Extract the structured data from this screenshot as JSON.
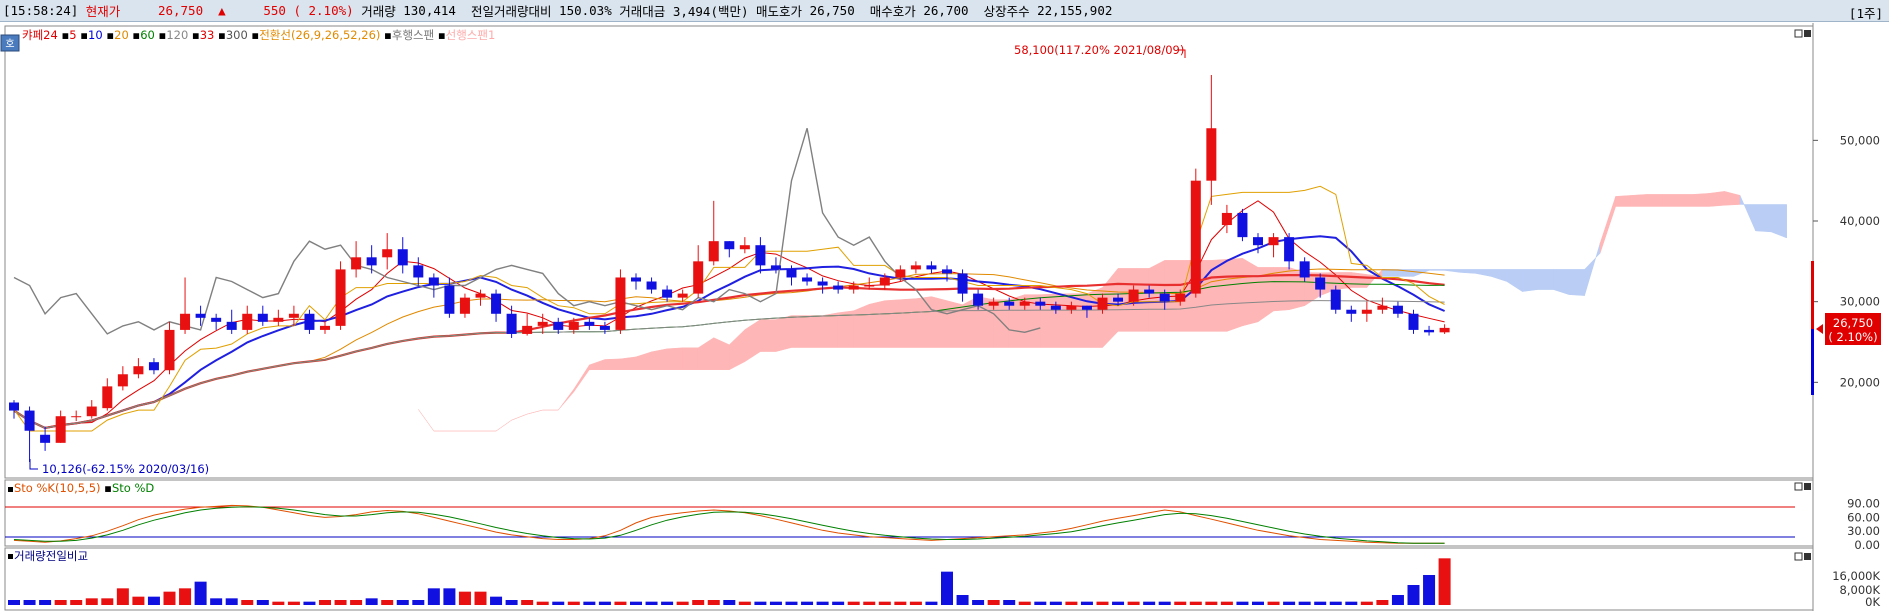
{
  "header": {
    "time": "[15:58:24]",
    "label_current": "현재가",
    "price": "26,750",
    "arrow": "▲",
    "change": "550",
    "change_pct": "( 2.10%)",
    "vol_label": "거래량",
    "vol": "130,414",
    "prevvol_label": "전일거래량대비",
    "prevvol": "150.03%",
    "amt_label": "거래대금",
    "amt": "3,494(백만)",
    "ask_label": "매도호가",
    "ask": "26,750",
    "bid_label": "매수호가",
    "bid": "26,700",
    "shares_label": "상장주수",
    "shares": "22,155,902",
    "period": "[1주]"
  },
  "legend": {
    "badge": "호",
    "main": [
      {
        "text": "캬페24",
        "color": "#e00000"
      },
      {
        "text": "5",
        "color": "#e00000"
      },
      {
        "text": "10",
        "color": "#0000e0"
      },
      {
        "text": "20",
        "color": "#e08a00"
      },
      {
        "text": "60",
        "color": "#008000"
      },
      {
        "text": "120",
        "color": "#888888"
      },
      {
        "text": "33",
        "color": "#e00000"
      },
      {
        "text": "300",
        "color": "#555555"
      },
      {
        "text": "전환선(26,9,26,52,26)",
        "color": "#e08a00"
      },
      {
        "text": "후행스팬",
        "color": "#777777"
      },
      {
        "text": "선행스팬1",
        "color": "#ffaaaa"
      }
    ],
    "sto": [
      {
        "text": "Sto %K(10,5,5)",
        "color": "#e05000"
      },
      {
        "text": "Sto %D",
        "color": "#008000"
      }
    ],
    "vol": [
      {
        "text": "거래량전일비교",
        "color": "#000080"
      }
    ]
  },
  "annotations": {
    "high": "58,100(117.20% 2021/08/09)",
    "low": "10,126(-62.15% 2020/03/16)"
  },
  "price_axis": [
    "50,000",
    "40,000",
    "30,000",
    "20,000"
  ],
  "price_tag": {
    "price": "26,750",
    "pct": "( 2.10%)"
  },
  "sto_axis": [
    "90.00",
    "60.00",
    "30.00",
    "0.00"
  ],
  "vol_axis": [
    "16,000K",
    "8,000K",
    "0K"
  ],
  "chart_data": {
    "type": "candlestick",
    "title": "캬페24",
    "interval": "weekly",
    "ylim": [
      10000,
      60000
    ],
    "candles": [
      [
        17500,
        16500,
        17800,
        15500
      ],
      [
        16500,
        14000,
        17000,
        10126
      ],
      [
        13500,
        12500,
        14500,
        11500
      ],
      [
        12500,
        15800,
        16500,
        12500
      ],
      [
        15800,
        15800,
        16500,
        15200
      ],
      [
        15800,
        17000,
        17800,
        15500
      ],
      [
        16800,
        19500,
        20500,
        16500
      ],
      [
        19500,
        21000,
        22000,
        19000
      ],
      [
        21000,
        22000,
        23000,
        20500
      ],
      [
        22500,
        21500,
        23000,
        21000
      ],
      [
        21500,
        26500,
        27500,
        21000
      ],
      [
        26500,
        28500,
        33000,
        26000
      ],
      [
        28500,
        28000,
        29500,
        27000
      ],
      [
        28000,
        27500,
        28500,
        26500
      ],
      [
        27500,
        26500,
        29000,
        26000
      ],
      [
        26500,
        28500,
        29500,
        26000
      ],
      [
        28500,
        27500,
        29500,
        27000
      ],
      [
        27500,
        28000,
        29000,
        27000
      ],
      [
        28000,
        28500,
        29500,
        27000
      ],
      [
        28500,
        26500,
        29000,
        26000
      ],
      [
        26500,
        27000,
        27500,
        26000
      ],
      [
        27000,
        34000,
        35000,
        26500
      ],
      [
        34000,
        35500,
        37500,
        33000
      ],
      [
        35500,
        34500,
        37000,
        33500
      ],
      [
        35500,
        36500,
        38500,
        34000
      ],
      [
        36500,
        34500,
        38000,
        33500
      ],
      [
        34500,
        33000,
        35500,
        32000
      ],
      [
        33000,
        32000,
        33500,
        30500
      ],
      [
        32000,
        28500,
        33000,
        28000
      ],
      [
        28500,
        30500,
        31000,
        28000
      ],
      [
        30500,
        31000,
        31500,
        29500
      ],
      [
        31000,
        28500,
        31500,
        27500
      ],
      [
        28500,
        26000,
        29500,
        25500
      ],
      [
        26000,
        27000,
        28500,
        25800
      ],
      [
        27000,
        27500,
        28500,
        26000
      ],
      [
        27500,
        26500,
        28000,
        26000
      ],
      [
        26500,
        27500,
        28000,
        26000
      ],
      [
        27500,
        27000,
        28000,
        26500
      ],
      [
        27000,
        26500,
        27500,
        26000
      ],
      [
        26500,
        33000,
        34000,
        26000
      ],
      [
        33000,
        32500,
        33500,
        31500
      ],
      [
        32500,
        31500,
        33000,
        31000
      ],
      [
        31500,
        30500,
        32000,
        30000
      ],
      [
        30500,
        31000,
        31500,
        30000
      ],
      [
        31000,
        35000,
        37000,
        30500
      ],
      [
        35000,
        37500,
        42500,
        34500
      ],
      [
        37500,
        36500,
        37500,
        35500
      ],
      [
        36500,
        37000,
        38000,
        36000
      ],
      [
        37000,
        34500,
        38000,
        33500
      ],
      [
        34500,
        34000,
        35500,
        33500
      ],
      [
        34000,
        33000,
        34500,
        32000
      ],
      [
        33000,
        32500,
        33500,
        32000
      ],
      [
        32500,
        32000,
        33000,
        31000
      ],
      [
        32000,
        31500,
        32500,
        31000
      ],
      [
        31500,
        32000,
        32500,
        31000
      ],
      [
        32000,
        32000,
        33000,
        31500
      ],
      [
        32000,
        33000,
        33500,
        31500
      ],
      [
        33000,
        34000,
        34500,
        32500
      ],
      [
        34000,
        34500,
        35000,
        33500
      ],
      [
        34500,
        34000,
        35000,
        33500
      ],
      [
        34000,
        33500,
        34500,
        32500
      ],
      [
        33500,
        31000,
        34000,
        30000
      ],
      [
        31000,
        29500,
        31500,
        29000
      ],
      [
        29500,
        30000,
        30500,
        29000
      ],
      [
        30000,
        29500,
        30500,
        29000
      ],
      [
        29500,
        30000,
        30500,
        29000
      ],
      [
        30000,
        29500,
        30500,
        29000
      ],
      [
        29500,
        29000,
        30000,
        28500
      ],
      [
        29000,
        29500,
        30000,
        28500
      ],
      [
        29500,
        29000,
        29500,
        28000
      ],
      [
        29000,
        30500,
        31000,
        28500
      ],
      [
        30500,
        30000,
        31000,
        29500
      ],
      [
        30000,
        31500,
        32000,
        29500
      ],
      [
        31500,
        31000,
        32000,
        30500
      ],
      [
        31000,
        30000,
        31500,
        29000
      ],
      [
        30000,
        31000,
        31500,
        29500
      ],
      [
        31000,
        45000,
        46500,
        30500
      ],
      [
        45000,
        51500,
        58100,
        42000
      ],
      [
        39500,
        41000,
        42000,
        38500
      ],
      [
        41000,
        38000,
        41500,
        37500
      ],
      [
        38000,
        37000,
        38500,
        36000
      ],
      [
        37000,
        38000,
        38500,
        35500
      ],
      [
        38000,
        35000,
        38500,
        34000
      ],
      [
        35000,
        33000,
        35500,
        32500
      ],
      [
        33000,
        31500,
        33500,
        30500
      ],
      [
        31500,
        29000,
        32000,
        28500
      ],
      [
        29000,
        28500,
        29500,
        27500
      ],
      [
        28500,
        29000,
        30000,
        27500
      ],
      [
        29000,
        29500,
        30500,
        28500
      ],
      [
        29500,
        28500,
        30000,
        28000
      ],
      [
        28500,
        26500,
        29000,
        26000
      ],
      [
        26500,
        26200,
        27000,
        25800
      ],
      [
        26200,
        26750,
        27200,
        26000
      ]
    ],
    "sto_k": [
      10,
      8,
      6,
      9,
      14,
      20,
      30,
      42,
      55,
      65,
      72,
      78,
      82,
      84,
      86,
      85,
      82,
      76,
      70,
      64,
      60,
      62,
      66,
      72,
      75,
      73,
      68,
      60,
      52,
      44,
      36,
      28,
      22,
      18,
      14,
      12,
      12,
      14,
      20,
      32,
      48,
      60,
      66,
      70,
      74,
      76,
      74,
      70,
      64,
      56,
      48,
      40,
      32,
      26,
      22,
      18,
      16,
      14,
      12,
      10,
      12,
      14,
      16,
      18,
      20,
      22,
      26,
      30,
      36,
      44,
      52,
      58,
      64,
      70,
      76,
      72,
      64,
      56,
      48,
      40,
      32,
      26,
      20,
      16,
      12,
      10,
      8,
      6,
      5,
      4,
      4,
      4,
      4
    ],
    "sto_d": [
      12,
      10,
      8,
      8,
      10,
      15,
      22,
      32,
      44,
      54,
      62,
      70,
      76,
      80,
      82,
      83,
      82,
      80,
      76,
      71,
      66,
      63,
      63,
      66,
      70,
      72,
      71,
      67,
      61,
      54,
      46,
      38,
      31,
      25,
      20,
      16,
      14,
      13,
      15,
      21,
      32,
      44,
      54,
      61,
      67,
      71,
      72,
      71,
      68,
      63,
      57,
      50,
      43,
      36,
      30,
      25,
      21,
      18,
      15,
      13,
      12,
      12,
      13,
      15,
      17,
      19,
      22,
      25,
      29,
      35,
      42,
      48,
      54,
      60,
      66,
      69,
      68,
      64,
      58,
      51,
      44,
      37,
      30,
      24,
      19,
      15,
      12,
      9,
      7,
      5,
      4,
      4,
      4
    ],
    "volume": [
      3,
      3,
      3,
      3,
      3,
      4,
      4,
      10,
      5,
      5,
      8,
      10,
      14,
      4,
      4,
      3,
      3,
      2,
      2,
      2,
      3,
      3,
      3,
      4,
      3,
      3,
      3,
      10,
      10,
      8,
      8,
      5,
      3,
      3,
      2,
      2,
      2,
      2,
      2,
      2,
      2,
      2,
      2,
      2,
      3,
      3,
      3,
      2,
      2,
      2,
      2,
      2,
      2,
      2,
      2,
      2,
      2,
      2,
      2,
      2,
      20,
      6,
      3,
      3,
      3,
      2,
      2,
      2,
      2,
      2,
      2,
      2,
      2,
      2,
      2,
      2,
      2,
      2,
      2,
      2,
      2,
      2,
      2,
      2,
      2,
      2,
      2,
      2,
      3,
      6,
      12,
      18,
      28
    ]
  }
}
